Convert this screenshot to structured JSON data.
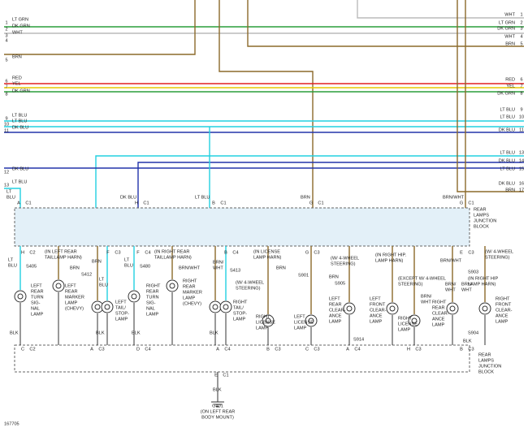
{
  "left_wires": [
    {
      "number": "1",
      "color": "LT GRN"
    },
    {
      "number": "2",
      "color": "DK GRN"
    },
    {
      "number": "3",
      "color": "WHT"
    },
    {
      "number": "4"
    },
    {
      "number": "5",
      "color": "BRN"
    },
    {
      "number": "6",
      "color": "RED"
    },
    {
      "number": "7",
      "color": "YEL"
    },
    {
      "number": "8",
      "color": "DK GRN"
    },
    {
      "number": "9",
      "color": "LT BLU"
    },
    {
      "number": "10",
      "color": "LT BLU"
    },
    {
      "number": "11",
      "color": "DK BLU"
    },
    {
      "number": "12",
      "color": "DK BLU"
    },
    {
      "number": "13",
      "color": "LT BLU"
    }
  ],
  "right_wires": [
    {
      "number": "1",
      "color": "WHT"
    },
    {
      "number": "2",
      "color": "LT GRN"
    },
    {
      "number": "3",
      "color": "DK GRN"
    },
    {
      "number": "4",
      "color": "WHT"
    },
    {
      "number": "5",
      "color": "BRN"
    },
    {
      "number": "6",
      "color": "RED"
    },
    {
      "number": "7",
      "color": "YEL"
    },
    {
      "number": "8",
      "color": "DK GRN"
    },
    {
      "number": "9",
      "color": "LT BLU"
    },
    {
      "number": "10",
      "color": "LT BLU"
    },
    {
      "number": "11",
      "color": "DK BLU"
    },
    {
      "number": "13",
      "color": "LT BLU"
    },
    {
      "number": "14",
      "color": "DK BLU"
    },
    {
      "number": "15",
      "color": "LT BLU"
    },
    {
      "number": "16",
      "color": "DK BLU"
    },
    {
      "number": "17",
      "color": "BRN"
    }
  ],
  "connectors": [
    {
      "pin": "A",
      "name": "C1"
    },
    {
      "pin": "H",
      "name": "C1"
    },
    {
      "pin": "B",
      "name": "C1"
    },
    {
      "pin": "G",
      "name": "C1"
    },
    {
      "pin": "G",
      "name": "C1"
    },
    {
      "pin": "H",
      "name": "C2"
    },
    {
      "pin": "F",
      "name": "C3"
    },
    {
      "pin": "F",
      "name": "C4"
    },
    {
      "pin": "B",
      "name": "C4"
    },
    {
      "pin": "G",
      "name": "C3"
    },
    {
      "pin": "E",
      "name": "C3"
    },
    {
      "pin": "C",
      "name": "C2"
    },
    {
      "pin": "A",
      "name": "C3"
    },
    {
      "pin": "D",
      "name": "C4"
    },
    {
      "pin": "A",
      "name": "C4"
    },
    {
      "pin": "B",
      "name": "C3"
    },
    {
      "pin": "C",
      "name": "C3"
    },
    {
      "pin": "A",
      "name": "C4"
    },
    {
      "pin": "H",
      "name": "C3"
    },
    {
      "pin": "B",
      "name": "C3"
    },
    {
      "pin": "E",
      "name": "C1"
    }
  ],
  "labels": [
    [
      "LT",
      "BLU"
    ],
    [
      "DK BLU"
    ],
    [
      "LT BLU"
    ],
    [
      "BRN"
    ],
    [
      "BRN/WHT"
    ],
    [
      "REAR",
      "LAMPS",
      "JUNCTION",
      "BLOCK"
    ],
    [
      "LT",
      "BLU"
    ],
    [
      "S405"
    ],
    [
      "(IN LEFT REAR",
      "TAILLAMP HARN)"
    ],
    [
      "BRN"
    ],
    [
      "S412"
    ],
    [
      "BRN"
    ],
    [
      "LT",
      "BLU"
    ],
    [
      "LT",
      "BLU"
    ],
    [
      "S480"
    ],
    [
      "(IN RIGHT REAR",
      "TAILLAMP HARN)"
    ],
    [
      "BRN/WHT"
    ],
    [
      "BRN/",
      "WHT"
    ],
    [
      "S413"
    ],
    [
      "(IN LICENSE",
      "LAMP HARN)"
    ],
    [
      "BRN"
    ],
    [
      "S901"
    ],
    [
      "(W/ 4-WHEEL",
      "STEERING)"
    ],
    [
      "BRN"
    ],
    [
      "S905"
    ],
    [
      "(IN RIGHT HIP.",
      "LAMP HARN)"
    ],
    [
      "BRN/WHT"
    ],
    [
      "(W/ 4-WHEEL",
      "STEERING)"
    ],
    [
      "S903"
    ],
    [
      "(IN RIGHT HIP",
      "LAMP HARN)"
    ],
    [
      "(W/ 4-WHEEL",
      "STEERING)"
    ],
    [
      "(EXCEPT W/ 4-WHEEL",
      "STEERING)"
    ],
    [
      "BRN/",
      "WHT"
    ],
    [
      "BRN/",
      "WHT"
    ],
    [
      "BRN/",
      "WHT"
    ],
    [
      "LEFT",
      "REAR",
      "TURN",
      "SIG-",
      "NAL",
      "LAMP"
    ],
    [
      "LEFT",
      "REAR",
      "MARKER",
      "LAMP",
      "(CHEVY)"
    ],
    [
      "LEFT",
      "TAIL/",
      "STOP-",
      "LAMP"
    ],
    [
      "RIGHT",
      "REAR",
      "TURN",
      "SIG-",
      "NAL",
      "LAMP"
    ],
    [
      "RIGHT",
      "REAR",
      "MARKER",
      "LAMP",
      "(CHEVY)"
    ],
    [
      "RIGHT",
      "TAIL/",
      "STOP-",
      "LAMP"
    ],
    [
      "RIGHT",
      "LICENSE",
      "LAMP"
    ],
    [
      "LEFT",
      "LICENSE",
      "LAMP"
    ],
    [
      "LEFT",
      "REAR",
      "CLEAR-",
      "ANCE",
      "LAMP"
    ],
    [
      "LEFT",
      "FRONT",
      "CLEAR-",
      "ANCE",
      "LAMP"
    ],
    [
      "RIGHT",
      "LICENSE",
      "LAMP"
    ],
    [
      "RIGHT",
      "REAR",
      "CLEAR-",
      "ANCE",
      "LAMP"
    ],
    [
      "RIGHT",
      "FRONT",
      "CLEAR-",
      "ANCE",
      "LAMP"
    ],
    [
      "BLK"
    ],
    [
      "BLK"
    ],
    [
      "BLK"
    ],
    [
      "BLK"
    ],
    [
      "S914"
    ],
    [
      "S904"
    ],
    [
      "BLK"
    ],
    [
      "REAR",
      "LAMPS",
      "JUNCTION",
      "BLOCK"
    ],
    [
      "BLK"
    ],
    [
      "G401",
      "(ON LEFT REAR",
      "BODY MOUNT)"
    ],
    [
      "167705"
    ]
  ]
}
